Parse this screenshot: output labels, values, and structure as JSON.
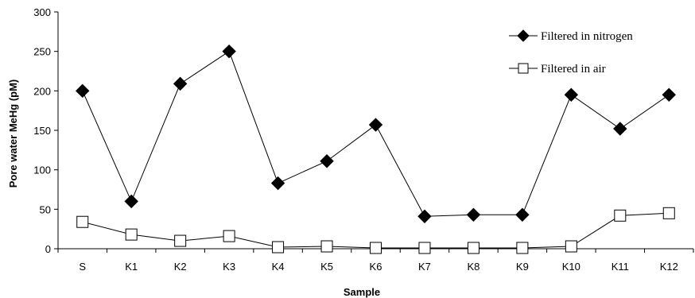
{
  "chart_data": {
    "type": "line",
    "title": "",
    "xlabel": "Sample",
    "ylabel": "Pore water MeHg (pM)",
    "ylim": [
      0,
      300
    ],
    "yticks": [
      0,
      50,
      100,
      150,
      200,
      250,
      300
    ],
    "categories": [
      "S",
      "K1",
      "K2",
      "K3",
      "K4",
      "K5",
      "K6",
      "K7",
      "K8",
      "K9",
      "K10",
      "K11",
      "K12"
    ],
    "series": [
      {
        "name": "Filtered in nitrogen",
        "marker": "filled-diamond",
        "color": "#000000",
        "values": [
          200,
          60,
          209,
          250,
          83,
          111,
          157,
          41,
          43,
          43,
          195,
          152,
          195
        ]
      },
      {
        "name": "Filtered in air",
        "marker": "open-square",
        "color": "#000000",
        "values": [
          34,
          18,
          10,
          16,
          2,
          3,
          1,
          1,
          1,
          1,
          3,
          42,
          45
        ]
      }
    ],
    "legend_position": "top-right",
    "grid": false
  }
}
